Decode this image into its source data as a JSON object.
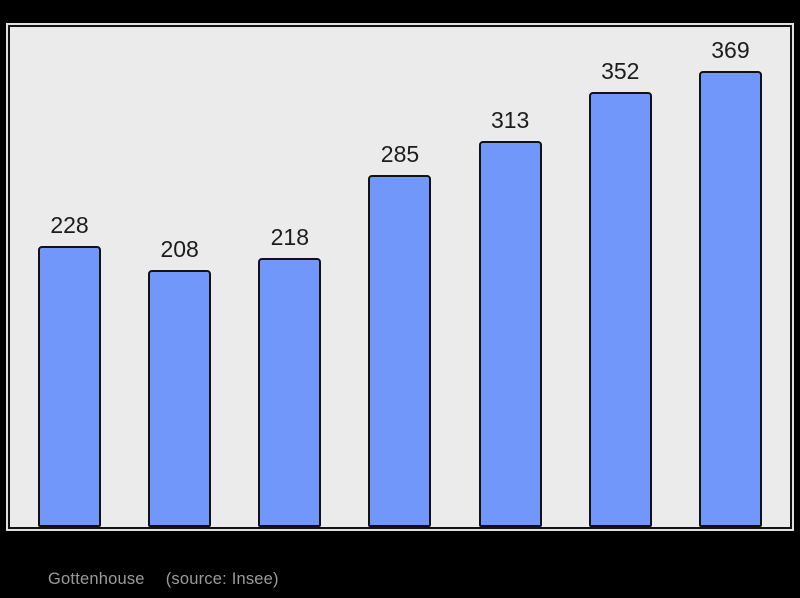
{
  "page": {
    "background_color": "#000000",
    "plot_background_color": "#ebebeb",
    "frame_border_color": "#121212",
    "frame_halo_color": "#ffffff"
  },
  "caption": {
    "title": "Gottenhouse",
    "source": "(source: Insee)"
  },
  "chart_data": {
    "type": "bar",
    "title": "",
    "xlabel": "",
    "ylabel": "",
    "categories": [
      "",
      "",
      "",
      "",
      "",
      "",
      ""
    ],
    "values": [
      228,
      208,
      218,
      285,
      313,
      352,
      369
    ],
    "data_labels": [
      "228",
      "208",
      "218",
      "285",
      "313",
      "352",
      "369"
    ],
    "ylim": [
      0,
      405
    ],
    "grid": false,
    "legend": false,
    "bar_color": "#7297fb",
    "bar_border_color": "#121212",
    "label_color": "#1c1c1c"
  }
}
